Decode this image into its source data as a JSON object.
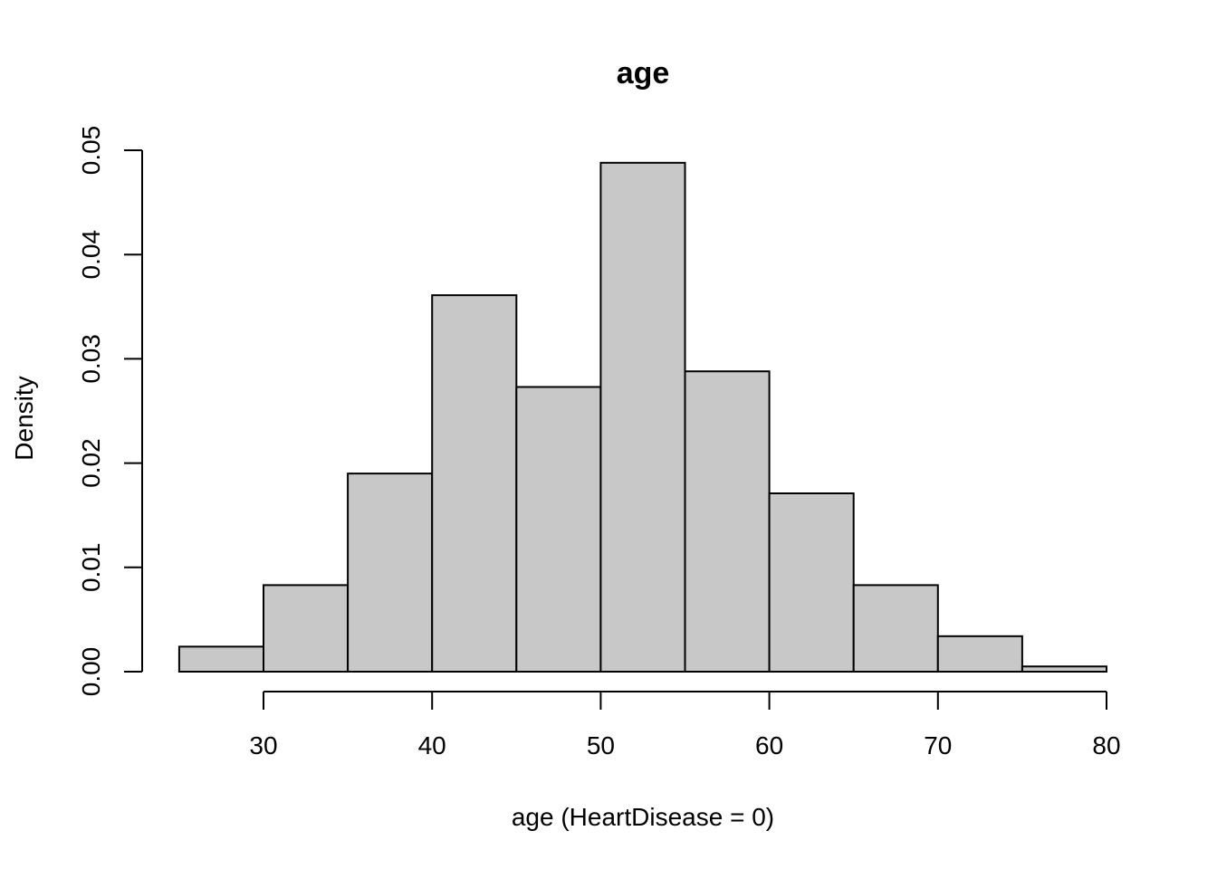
{
  "chart_data": {
    "type": "bar",
    "title": "age",
    "xlabel": "age (HeartDisease = 0)",
    "ylabel": "Density",
    "bins": [
      {
        "x0": 25,
        "x1": 30,
        "density": 0.0024
      },
      {
        "x0": 30,
        "x1": 35,
        "density": 0.0083
      },
      {
        "x0": 35,
        "x1": 40,
        "density": 0.019
      },
      {
        "x0": 40,
        "x1": 45,
        "density": 0.0361
      },
      {
        "x0": 45,
        "x1": 50,
        "density": 0.0273
      },
      {
        "x0": 50,
        "x1": 55,
        "density": 0.0488
      },
      {
        "x0": 55,
        "x1": 60,
        "density": 0.0288
      },
      {
        "x0": 60,
        "x1": 65,
        "density": 0.0171
      },
      {
        "x0": 65,
        "x1": 70,
        "density": 0.0083
      },
      {
        "x0": 70,
        "x1": 75,
        "density": 0.0034
      },
      {
        "x0": 75,
        "x1": 80,
        "density": 0.0005
      }
    ],
    "x_ticks": [
      "30",
      "40",
      "50",
      "60",
      "70",
      "80"
    ],
    "y_ticks": [
      "0.00",
      "0.01",
      "0.02",
      "0.03",
      "0.04",
      "0.05"
    ],
    "xlim": [
      30,
      80
    ],
    "ylim": [
      0,
      0.05
    ],
    "grid": false,
    "bar_fill": "#c8c8c8",
    "bar_stroke": "#000000"
  }
}
